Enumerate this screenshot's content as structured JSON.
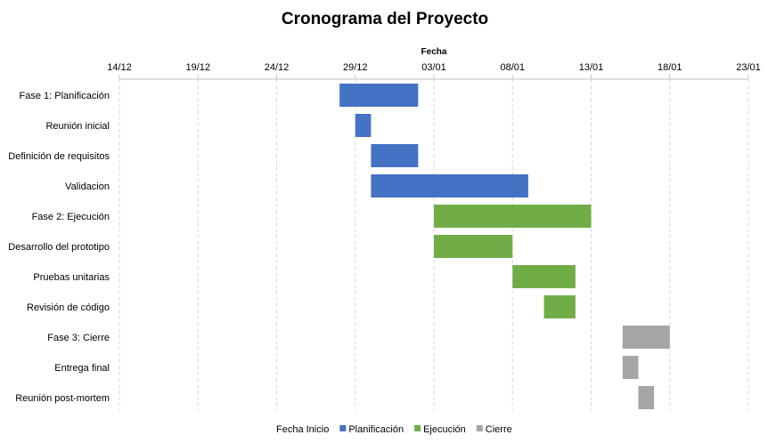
{
  "chart_data": {
    "type": "bar",
    "orientation": "horizontal-gantt",
    "title": "Cronograma del Proyecto",
    "xlabel": "Fecha",
    "ylabel": "",
    "x_axis_position": "top",
    "grid": true,
    "legend_position": "bottom",
    "x_ticks": [
      "14/12",
      "19/12",
      "24/12",
      "29/12",
      "03/01",
      "08/01",
      "13/01",
      "18/01",
      "23/01"
    ],
    "x_tick_dates": [
      "2023-12-14",
      "2023-12-19",
      "2023-12-24",
      "2023-12-29",
      "2024-01-03",
      "2024-01-08",
      "2024-01-13",
      "2024-01-18",
      "2024-01-23"
    ],
    "categories": [
      "Fase 1: Planificación",
      "Reunión inicial",
      "Definición de requisitos",
      "Validacion",
      "Fase 2: Ejecución",
      "Desarrollo del prototipo",
      "Pruebas unitarias",
      "Revisión de código",
      "Fase 3: Cierre",
      "Entrega final",
      "Reunión post-mortem"
    ],
    "tasks": [
      {
        "start": "2023-12-28",
        "end": "2024-01-02",
        "series": 1
      },
      {
        "start": "2023-12-29",
        "end": "2023-12-30",
        "series": 1
      },
      {
        "start": "2023-12-30",
        "end": "2024-01-02",
        "series": 1
      },
      {
        "start": "2023-12-30",
        "end": "2024-01-09",
        "series": 1
      },
      {
        "start": "2024-01-03",
        "end": "2024-01-13",
        "series": 2
      },
      {
        "start": "2024-01-03",
        "end": "2024-01-08",
        "series": 2
      },
      {
        "start": "2024-01-08",
        "end": "2024-01-12",
        "series": 2
      },
      {
        "start": "2024-01-10",
        "end": "2024-01-12",
        "series": 2
      },
      {
        "start": "2024-01-15",
        "end": "2024-01-18",
        "series": 3
      },
      {
        "start": "2024-01-15",
        "end": "2024-01-16",
        "series": 3
      },
      {
        "start": "2024-01-16",
        "end": "2024-01-17",
        "series": 3
      }
    ],
    "series": [
      {
        "name": "Fecha Inicio",
        "color": "none"
      },
      {
        "name": "Planificación",
        "color": "#4472C4"
      },
      {
        "name": "Ejecución",
        "color": "#70AD47"
      },
      {
        "name": "Cierre",
        "color": "#A5A5A5"
      }
    ]
  }
}
